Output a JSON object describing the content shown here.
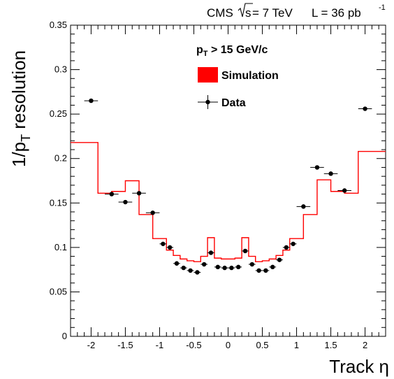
{
  "chart_data": {
    "type": "line",
    "header": {
      "experiment": "CMS",
      "sqrt_s": "s",
      "energy": "= 7 TeV",
      "lumi_label": "L = 36 pb",
      "lumi_exp": "-1"
    },
    "xlabel": "Track η",
    "ylabel": {
      "main": "1/p",
      "sub": "T",
      "rest": " resolution"
    },
    "xlim": [
      -2.3,
      2.3
    ],
    "ylim": [
      0,
      0.35
    ],
    "x_ticks": [
      -2,
      -1.5,
      -1,
      -0.5,
      0,
      0.5,
      1,
      1.5,
      2
    ],
    "x_tick_labels": [
      "-2",
      "-1.5",
      "-1",
      "-0.5",
      "0",
      "0.5",
      "1",
      "1.5",
      "2"
    ],
    "y_ticks": [
      0,
      0.05,
      0.1,
      0.15,
      0.2,
      0.25,
      0.3,
      0.35
    ],
    "y_tick_labels": [
      "0",
      "0.05",
      "0.1",
      "0.15",
      "0.2",
      "0.25",
      "0.3",
      "0.35"
    ],
    "grid": false,
    "legend": {
      "placement": "top-center",
      "cut": {
        "main": "p",
        "sub": "T",
        "rest": " > 15 GeV/c"
      },
      "items": [
        "Simulation",
        "Data"
      ]
    },
    "colors": {
      "simulation": "#ff0000",
      "data": "#000000"
    },
    "series": [
      {
        "name": "Simulation",
        "style": "histogram-step",
        "bin_edges": [
          -2.3,
          -1.9,
          -1.7,
          -1.5,
          -1.3,
          -1.1,
          -0.9,
          -0.8,
          -0.7,
          -0.6,
          -0.5,
          -0.4,
          -0.3,
          -0.2,
          -0.1,
          0.0,
          0.1,
          0.2,
          0.3,
          0.4,
          0.5,
          0.6,
          0.7,
          0.8,
          0.9,
          1.1,
          1.3,
          1.5,
          1.7,
          1.9,
          2.3
        ],
        "values": [
          0.218,
          0.161,
          0.163,
          0.175,
          0.137,
          0.11,
          0.097,
          0.091,
          0.087,
          0.085,
          0.084,
          0.09,
          0.111,
          0.088,
          0.087,
          0.087,
          0.088,
          0.111,
          0.09,
          0.084,
          0.085,
          0.087,
          0.091,
          0.097,
          0.11,
          0.137,
          0.176,
          0.163,
          0.161,
          0.208
        ]
      },
      {
        "name": "Data",
        "style": "points-with-xerr",
        "x": [
          -2.0,
          -1.7,
          -1.5,
          -1.3,
          -1.1,
          -0.95,
          -0.85,
          -0.75,
          -0.65,
          -0.55,
          -0.45,
          -0.35,
          -0.25,
          -0.15,
          -0.05,
          0.05,
          0.15,
          0.25,
          0.35,
          0.45,
          0.55,
          0.65,
          0.75,
          0.85,
          0.95,
          1.1,
          1.3,
          1.5,
          1.7,
          2.0
        ],
        "y": [
          0.265,
          0.16,
          0.151,
          0.161,
          0.139,
          0.104,
          0.1,
          0.082,
          0.077,
          0.074,
          0.072,
          0.081,
          0.094,
          0.078,
          0.077,
          0.077,
          0.078,
          0.096,
          0.081,
          0.074,
          0.074,
          0.078,
          0.086,
          0.1,
          0.104,
          0.146,
          0.19,
          0.183,
          0.164,
          0.256
        ],
        "xerr": [
          0.1,
          0.1,
          0.1,
          0.1,
          0.1,
          0.05,
          0.05,
          0.05,
          0.05,
          0.05,
          0.05,
          0.05,
          0.05,
          0.05,
          0.05,
          0.05,
          0.05,
          0.05,
          0.05,
          0.05,
          0.05,
          0.05,
          0.05,
          0.05,
          0.05,
          0.1,
          0.1,
          0.1,
          0.1,
          0.1
        ]
      }
    ]
  }
}
